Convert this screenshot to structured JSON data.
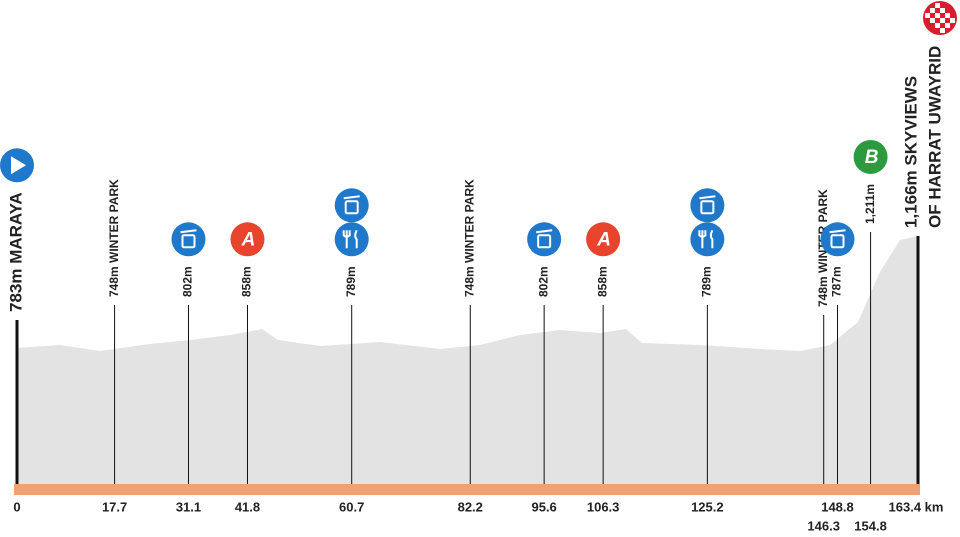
{
  "points": [
    {
      "km": 0,
      "label": "783m MARAYA",
      "icons": [
        "start"
      ]
    },
    {
      "km": 17.7,
      "label": "748m WINTER PARK",
      "icons": []
    },
    {
      "km": 31.1,
      "label": "802m",
      "icons": [
        "trash"
      ]
    },
    {
      "km": 41.8,
      "label": "858m",
      "icons": [
        "A"
      ]
    },
    {
      "km": 60.7,
      "label": "789m",
      "icons": [
        "trash",
        "food"
      ]
    },
    {
      "km": 82.2,
      "label": "748m WINTER PARK",
      "icons": []
    },
    {
      "km": 95.6,
      "label": "802m",
      "icons": [
        "trash"
      ]
    },
    {
      "km": 106.3,
      "label": "858m",
      "icons": [
        "A"
      ]
    },
    {
      "km": 125.2,
      "label": "789m",
      "icons": [
        "trash",
        "food"
      ]
    },
    {
      "km": 146.3,
      "label": "748m WINTER PARK",
      "icons": []
    },
    {
      "km": 148.8,
      "label": "787m",
      "icons": [
        "trash"
      ]
    },
    {
      "km": 154.8,
      "label": "1,211m",
      "icons": [
        "B"
      ]
    },
    {
      "km": {
        "value": 163.4,
        "label": "163.4 km"
      },
      "label": [
        "1,166m SKYVIEWS",
        "OF HARRAT UWAYRID"
      ],
      "icons": [
        "finish"
      ]
    }
  ]
}
